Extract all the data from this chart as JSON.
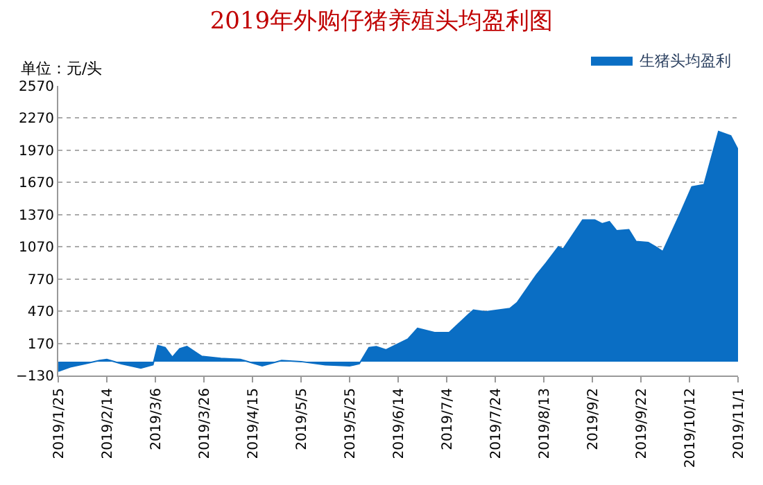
{
  "chart_data": {
    "type": "area",
    "title": "2019年外购仔猪养殖头均盈利图",
    "annotations": [
      "单位：元/头"
    ],
    "x": [
      "2019-01-25",
      "2019-01-30",
      "2019-02-05",
      "2019-02-11",
      "2019-02-14",
      "2019-02-20",
      "2019-02-28",
      "2019-03-05",
      "2019-03-07",
      "2019-03-10",
      "2019-03-13",
      "2019-03-16",
      "2019-03-19",
      "2019-03-25",
      "2019-04-02",
      "2019-04-10",
      "2019-04-19",
      "2019-04-27",
      "2019-05-05",
      "2019-05-15",
      "2019-05-25",
      "2019-05-29",
      "2019-06-02",
      "2019-06-05",
      "2019-06-09",
      "2019-06-18",
      "2019-06-22",
      "2019-06-29",
      "2019-07-05",
      "2019-07-13",
      "2019-07-15",
      "2019-07-20",
      "2019-07-30",
      "2019-08-02",
      "2019-08-10",
      "2019-08-14",
      "2019-08-19",
      "2019-08-21",
      "2019-08-29",
      "2019-09-03",
      "2019-09-06",
      "2019-09-09",
      "2019-09-12",
      "2019-09-17",
      "2019-09-20",
      "2019-09-25",
      "2019-09-28",
      "2019-10-01",
      "2019-10-08",
      "2019-10-13",
      "2019-10-18",
      "2019-10-24",
      "2019-10-29",
      "2019-11-01"
    ],
    "series": [
      {
        "name": "生猪头均盈利",
        "color": "#0a6ec4",
        "values": [
          -90,
          -50,
          -20,
          10,
          20,
          -20,
          -60,
          -30,
          150,
          130,
          40,
          120,
          140,
          50,
          30,
          20,
          -40,
          10,
          0,
          -30,
          -40,
          -20,
          130,
          140,
          110,
          210,
          310,
          270,
          270,
          440,
          480,
          465,
          495,
          550,
          810,
          920,
          1070,
          1050,
          1320,
          1320,
          1285,
          1305,
          1220,
          1230,
          1120,
          1110,
          1070,
          1025,
          1370,
          1630,
          1650,
          2145,
          2105,
          1975
        ]
      }
    ],
    "xlim": [
      "2019-01-25",
      "2019-11-01"
    ],
    "xticks": [
      {
        "value": "2019-01-25",
        "label": "2019/1/25"
      },
      {
        "value": "2019-02-14",
        "label": "2019/2/14"
      },
      {
        "value": "2019-03-06",
        "label": "2019/3/6"
      },
      {
        "value": "2019-03-26",
        "label": "2019/3/26"
      },
      {
        "value": "2019-04-15",
        "label": "2019/4/15"
      },
      {
        "value": "2019-05-05",
        "label": "2019/5/5"
      },
      {
        "value": "2019-05-25",
        "label": "2019/5/25"
      },
      {
        "value": "2019-06-14",
        "label": "2019/6/14"
      },
      {
        "value": "2019-07-04",
        "label": "2019/7/4"
      },
      {
        "value": "2019-07-24",
        "label": "2019/7/24"
      },
      {
        "value": "2019-08-13",
        "label": "2019/8/13"
      },
      {
        "value": "2019-09-02",
        "label": "2019/9/2"
      },
      {
        "value": "2019-09-22",
        "label": "2019/9/22"
      },
      {
        "value": "2019-10-12",
        "label": "2019/10/12"
      },
      {
        "value": "2019-11-01",
        "label": "2019/11/1"
      }
    ],
    "ylim": [
      -130,
      2570
    ],
    "yticks": [
      -130,
      170,
      470,
      770,
      1070,
      1370,
      1670,
      1970,
      2270,
      2570
    ],
    "grid": "y",
    "legend": "top right"
  }
}
